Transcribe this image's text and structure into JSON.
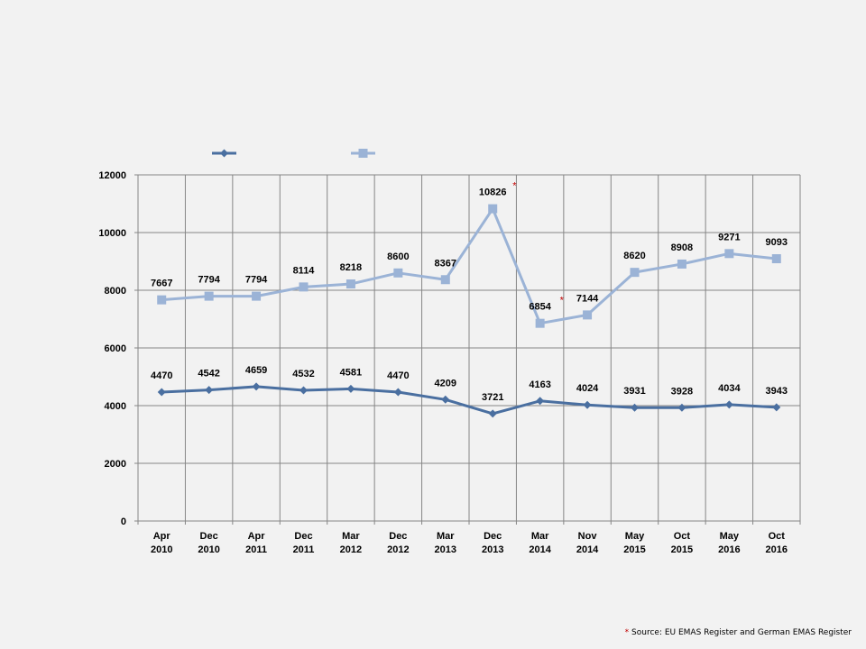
{
  "chart_data": {
    "type": "line",
    "categories": [
      [
        "Apr",
        "2010"
      ],
      [
        "Dec",
        "2010"
      ],
      [
        "Apr",
        "2011"
      ],
      [
        "Dec",
        "2011"
      ],
      [
        "Mar",
        "2012"
      ],
      [
        "Dec",
        "2012"
      ],
      [
        "Mar",
        "2013"
      ],
      [
        "Dec",
        "2013"
      ],
      [
        "Mar",
        "2014"
      ],
      [
        "Nov",
        "2014"
      ],
      [
        "May",
        "2015"
      ],
      [
        "Oct",
        "2015"
      ],
      [
        "May",
        "2016"
      ],
      [
        "Oct",
        "2016"
      ]
    ],
    "ylim": [
      0,
      12000
    ],
    "yticks": [
      0,
      2000,
      4000,
      6000,
      8000,
      10000,
      12000
    ],
    "grid": true,
    "legend_position": "top-left",
    "series": [
      {
        "color": "#4a6fa0",
        "marker": "diamond",
        "values": [
          4470,
          4542,
          4659,
          4532,
          4581,
          4470,
          4209,
          3721,
          4163,
          4024,
          3931,
          3928,
          4034,
          3943
        ]
      },
      {
        "color": "#9bb3d6",
        "marker": "square",
        "values": [
          7667,
          7794,
          7794,
          8114,
          8218,
          8600,
          8367,
          10826,
          6854,
          7144,
          8620,
          8908,
          9271,
          9093
        ]
      }
    ],
    "annotations": [
      {
        "series": 1,
        "index": 7,
        "text": "*",
        "color": "#c00000"
      },
      {
        "series": 1,
        "index": 8,
        "text": "*",
        "color": "#c00000"
      }
    ]
  },
  "footnote": {
    "marker": "*",
    "text": " Source: EU EMAS Register and German EMAS Register"
  }
}
